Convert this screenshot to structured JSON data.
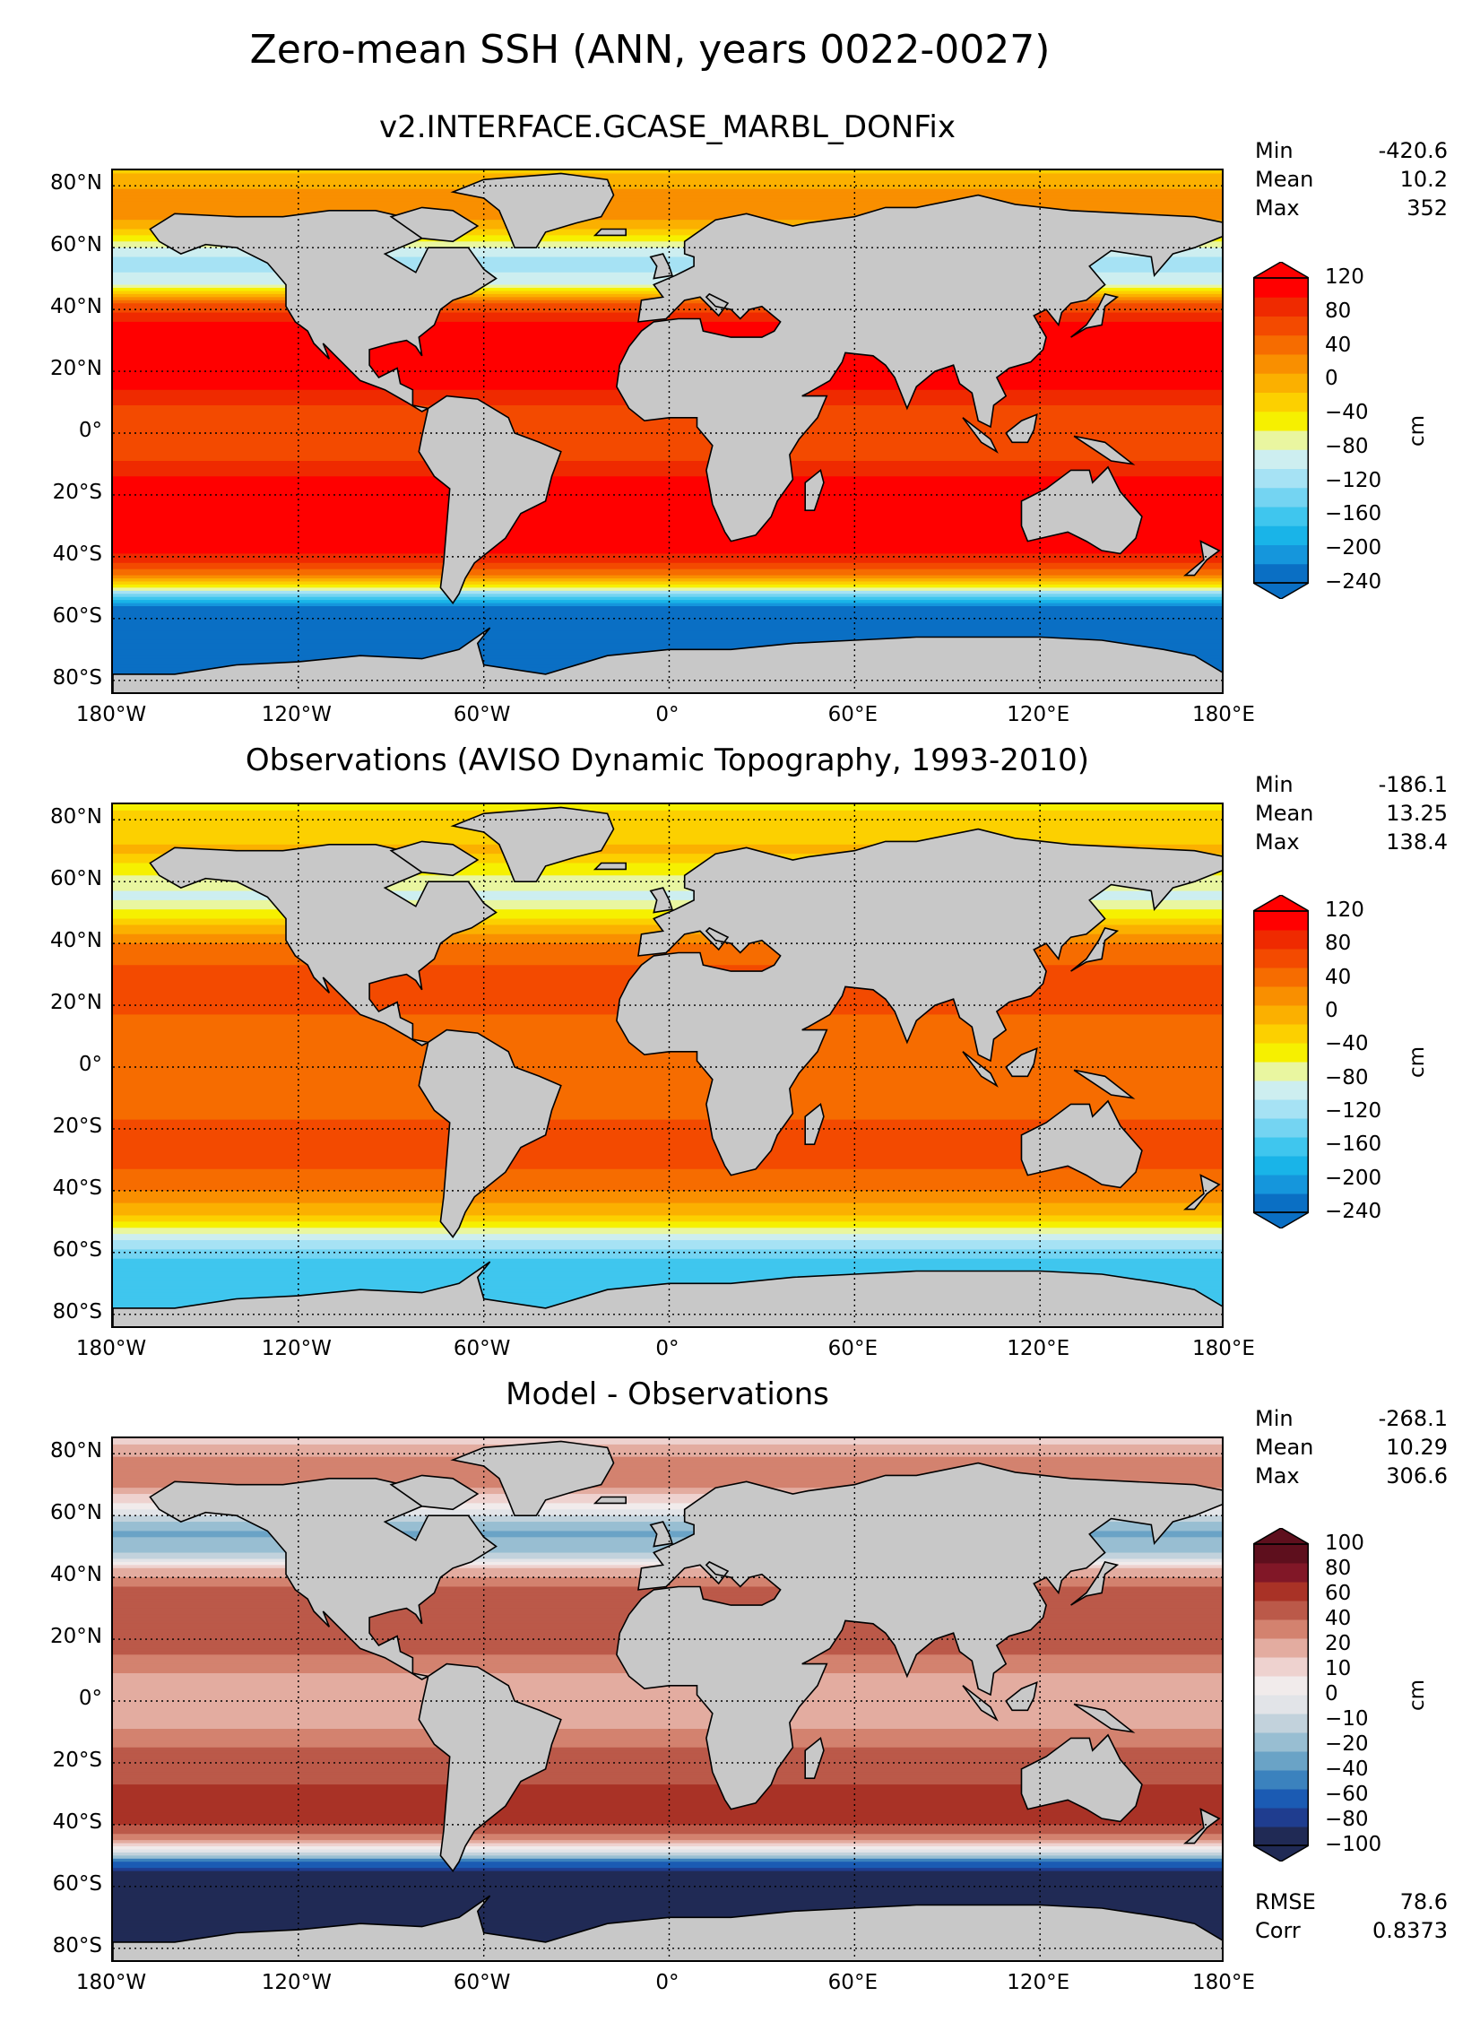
{
  "suptitle": "Zero-mean SSH (ANN, years 0022-0027)",
  "colors": {
    "land": "#c8c8c8",
    "ssh_scale": [
      "#0a6fc4",
      "#1596dc",
      "#19b4e8",
      "#3fc6ee",
      "#74d4f2",
      "#a6e2f4",
      "#cdeef0",
      "#e9f6a0",
      "#f6f000",
      "#fcd000",
      "#fbb000",
      "#f98f00",
      "#f66c00",
      "#f34a00",
      "#ef2a00",
      "#ff0000"
    ],
    "diff_scale": [
      "#202a55",
      "#1f3d8f",
      "#1b5bb3",
      "#3b82be",
      "#6aa3c6",
      "#98bed2",
      "#c2d2dc",
      "#e2e4e8",
      "#f1ebeb",
      "#eed2cf",
      "#e3aca0",
      "#d3826f",
      "#bb5949",
      "#a93226",
      "#811727",
      "#5e0f1d"
    ]
  },
  "chart_data": [
    {
      "type": "heatmap",
      "title": "v2.INTERFACE.GCASE_MARBL_DONFix",
      "x_ticks": [
        "180°W",
        "120°W",
        "60°W",
        "0°",
        "60°E",
        "120°E",
        "180°E"
      ],
      "y_ticks": [
        "80°N",
        "60°N",
        "40°N",
        "20°N",
        "0°",
        "20°S",
        "40°S",
        "60°S",
        "80°S"
      ],
      "xlim": [
        -180,
        180
      ],
      "ylim": [
        -85,
        85
      ],
      "stats": {
        "min_label": "Min",
        "min": "-420.6",
        "mean_label": "Mean",
        "mean": "10.2",
        "max_label": "Max",
        "max": "352"
      },
      "colorbar": {
        "label": "cm",
        "ticks": [
          "120",
          "80",
          "40",
          "0",
          "−40",
          "−80",
          "−120",
          "−160",
          "−200",
          "−240"
        ],
        "range": [
          -240,
          120
        ]
      },
      "zonal_profile": {
        "lat": [
          85,
          78,
          70,
          62,
          55,
          48,
          42,
          35,
          25,
          15,
          5,
          -5,
          -15,
          -25,
          -35,
          -42,
          -47,
          -52,
          -56,
          -62,
          -72,
          -80,
          -85
        ],
        "value": [
          -20,
          10,
          20,
          -60,
          -130,
          -80,
          50,
          110,
          120,
          100,
          60,
          60,
          100,
          120,
          115,
          80,
          10,
          -120,
          -220,
          -240,
          -240,
          -240,
          -240
        ]
      }
    },
    {
      "type": "heatmap",
      "title": "Observations (AVISO Dynamic Topography, 1993-2010)",
      "x_ticks": [
        "180°W",
        "120°W",
        "60°W",
        "0°",
        "60°E",
        "120°E",
        "180°E"
      ],
      "y_ticks": [
        "80°N",
        "60°N",
        "40°N",
        "20°N",
        "0°",
        "20°S",
        "40°S",
        "60°S",
        "80°S"
      ],
      "xlim": [
        -180,
        180
      ],
      "ylim": [
        -85,
        85
      ],
      "stats": {
        "min_label": "Min",
        "min": "-186.1",
        "mean_label": "Mean",
        "mean": "13.25",
        "max_label": "Max",
        "max": "138.4"
      },
      "colorbar": {
        "label": "cm",
        "ticks": [
          "120",
          "80",
          "40",
          "0",
          "−40",
          "−80",
          "−120",
          "−160",
          "−200",
          "−240"
        ],
        "range": [
          -240,
          120
        ]
      },
      "zonal_profile": {
        "lat": [
          85,
          78,
          70,
          62,
          55,
          48,
          42,
          35,
          25,
          15,
          5,
          -5,
          -15,
          -25,
          -35,
          -42,
          -47,
          -52,
          -56,
          -62,
          -72,
          -80,
          -85
        ],
        "value": [
          -40,
          -30,
          -10,
          -60,
          -90,
          -40,
          20,
          50,
          60,
          50,
          30,
          30,
          50,
          60,
          50,
          20,
          -10,
          -60,
          -110,
          -150,
          -155,
          -160,
          -160
        ]
      }
    },
    {
      "type": "heatmap",
      "title": "Model - Observations",
      "x_ticks": [
        "180°W",
        "120°W",
        "60°W",
        "0°",
        "60°E",
        "120°E",
        "180°E"
      ],
      "y_ticks": [
        "80°N",
        "60°N",
        "40°N",
        "20°N",
        "0°",
        "20°S",
        "40°S",
        "60°S",
        "80°S"
      ],
      "xlim": [
        -180,
        180
      ],
      "ylim": [
        -85,
        85
      ],
      "stats": {
        "min_label": "Min",
        "min": "-268.1",
        "mean_label": "Mean",
        "mean": "10.29",
        "max_label": "Max",
        "max": "306.6"
      },
      "colorbar": {
        "label": "cm",
        "ticks": [
          "100",
          "80",
          "60",
          "40",
          "20",
          "10",
          "0",
          "−10",
          "−20",
          "−40",
          "−60",
          "−80",
          "−100"
        ],
        "range": [
          -100,
          100
        ]
      },
      "rmse": {
        "rmse_label": "RMSE",
        "rmse": "78.6",
        "corr_label": "Corr",
        "corr": "0.8373"
      },
      "zonal_profile": {
        "lat": [
          85,
          78,
          70,
          62,
          55,
          48,
          42,
          35,
          25,
          15,
          5,
          -5,
          -15,
          -25,
          -35,
          -42,
          -47,
          -52,
          -56,
          -62,
          -72,
          -80,
          -85
        ],
        "value": [
          20,
          40,
          40,
          0,
          -40,
          -30,
          30,
          60,
          60,
          50,
          30,
          30,
          50,
          60,
          70,
          60,
          20,
          -60,
          -100,
          -100,
          -100,
          -100,
          -100
        ]
      }
    }
  ]
}
